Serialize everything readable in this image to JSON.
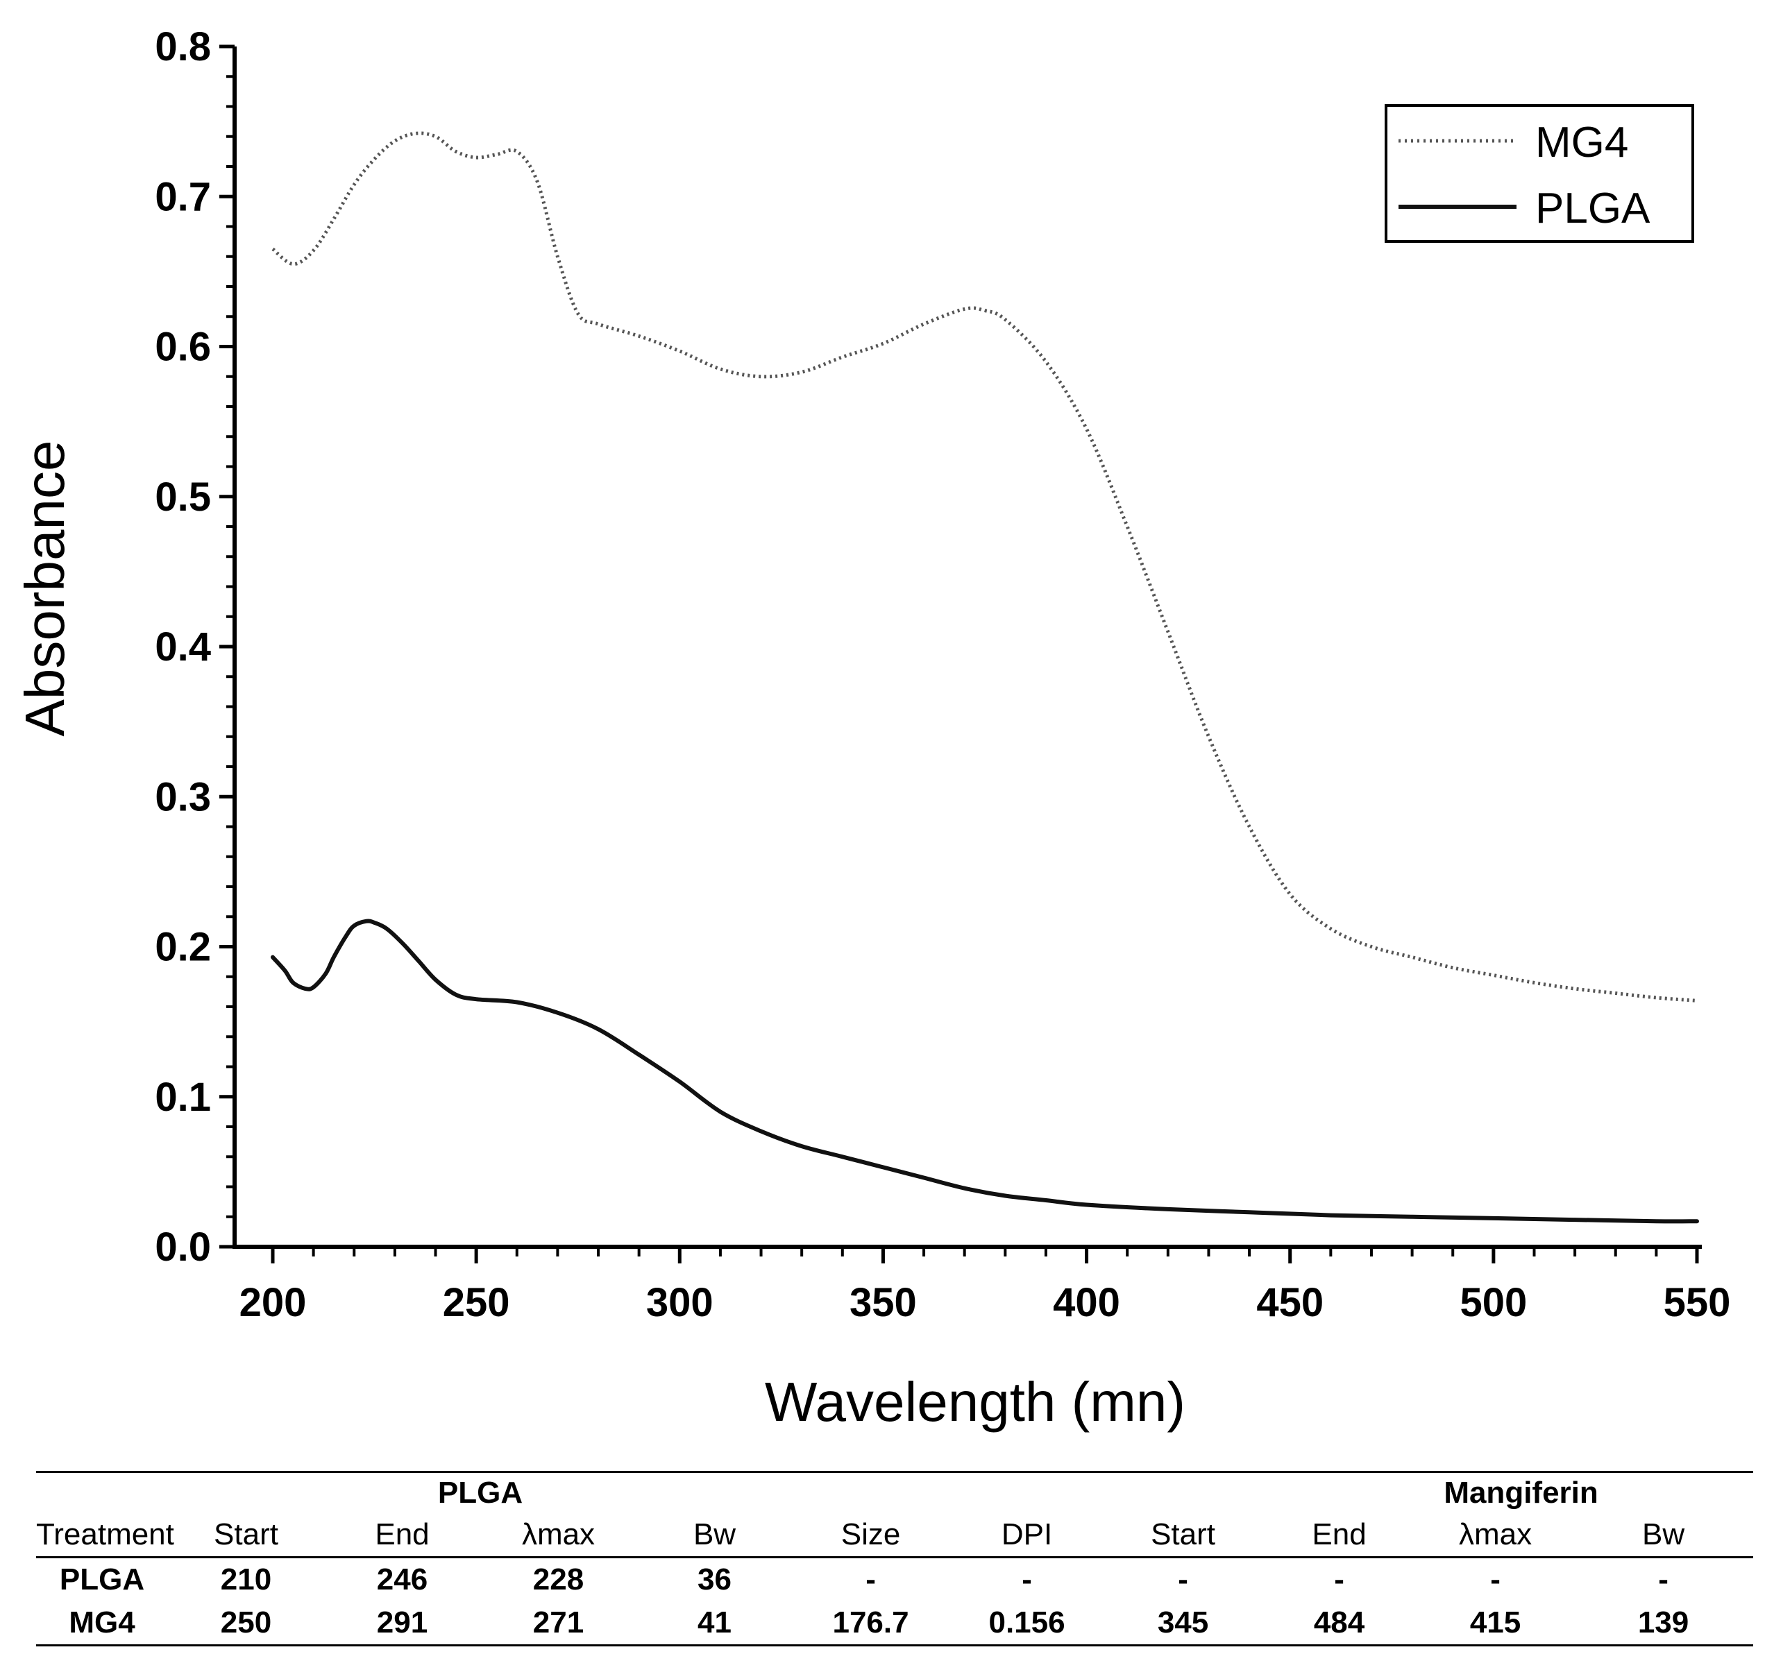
{
  "chart_data": {
    "type": "line",
    "xlabel": "Wavelength (mn)",
    "ylabel": "Absorbance",
    "xlim": [
      190,
      550
    ],
    "ylim": [
      0.0,
      0.8
    ],
    "x_ticks": [
      "200",
      "250",
      "300",
      "350",
      "400",
      "450",
      "500",
      "550"
    ],
    "y_ticks": [
      "0.0",
      "0.1",
      "0.2",
      "0.3",
      "0.4",
      "0.5",
      "0.6",
      "0.7",
      "0.8"
    ],
    "legend_position": "top-right",
    "series": [
      {
        "name": "MG4",
        "style": "dotted",
        "color": "#555555",
        "x": [
          200,
          205,
          210,
          215,
          220,
          225,
          230,
          235,
          240,
          245,
          250,
          255,
          260,
          265,
          270,
          275,
          280,
          290,
          300,
          310,
          320,
          330,
          340,
          350,
          360,
          370,
          375,
          380,
          390,
          400,
          410,
          420,
          430,
          440,
          450,
          460,
          470,
          480,
          490,
          500,
          510,
          520,
          530,
          540,
          550
        ],
        "values": [
          0.665,
          0.655,
          0.664,
          0.685,
          0.708,
          0.725,
          0.737,
          0.742,
          0.74,
          0.73,
          0.726,
          0.728,
          0.73,
          0.71,
          0.66,
          0.622,
          0.615,
          0.607,
          0.597,
          0.585,
          0.58,
          0.583,
          0.593,
          0.602,
          0.615,
          0.625,
          0.624,
          0.618,
          0.59,
          0.545,
          0.48,
          0.41,
          0.34,
          0.28,
          0.235,
          0.212,
          0.2,
          0.193,
          0.186,
          0.181,
          0.176,
          0.172,
          0.169,
          0.166,
          0.164
        ]
      },
      {
        "name": "PLGA",
        "style": "solid",
        "color": "#111111",
        "x": [
          200,
          203,
          205,
          208,
          210,
          213,
          215,
          218,
          220,
          223,
          225,
          228,
          232,
          236,
          240,
          245,
          250,
          260,
          270,
          280,
          290,
          300,
          310,
          320,
          330,
          340,
          350,
          360,
          370,
          380,
          390,
          400,
          420,
          440,
          460,
          480,
          500,
          520,
          540,
          550
        ],
        "values": [
          0.193,
          0.184,
          0.176,
          0.172,
          0.173,
          0.182,
          0.193,
          0.207,
          0.214,
          0.217,
          0.216,
          0.212,
          0.202,
          0.19,
          0.178,
          0.168,
          0.165,
          0.163,
          0.156,
          0.145,
          0.128,
          0.11,
          0.09,
          0.077,
          0.067,
          0.06,
          0.053,
          0.046,
          0.039,
          0.034,
          0.031,
          0.028,
          0.025,
          0.023,
          0.021,
          0.02,
          0.019,
          0.018,
          0.017,
          0.017
        ]
      }
    ]
  },
  "table": {
    "group_headers": {
      "plga": "PLGA",
      "mangiferin": "Mangiferin"
    },
    "columns": [
      "Treatment",
      "Start",
      "End",
      "λmax",
      "Bw",
      "Size",
      "DPI",
      "Start",
      "End",
      "λmax",
      "Bw"
    ],
    "rows": [
      [
        "PLGA",
        "210",
        "246",
        "228",
        "36",
        "-",
        "-",
        "-",
        "-",
        "-",
        "-"
      ],
      [
        "MG4",
        "250",
        "291",
        "271",
        "41",
        "176.7",
        "0.156",
        "345",
        "484",
        "415",
        "139"
      ]
    ]
  }
}
